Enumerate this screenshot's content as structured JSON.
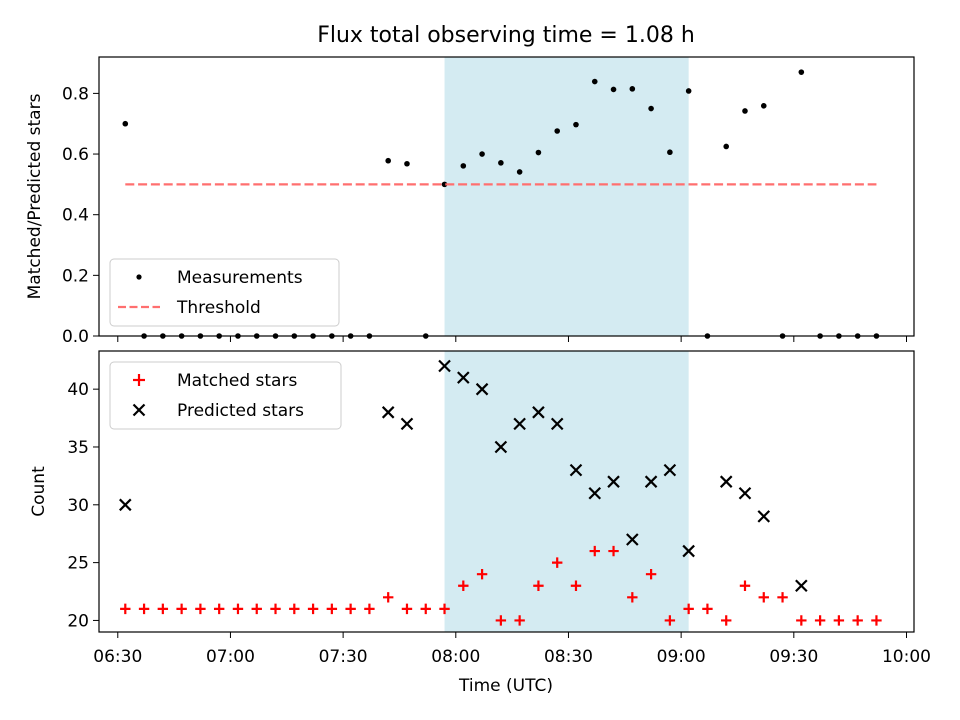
{
  "chart_data": [
    {
      "type": "scatter",
      "title": "Flux total observing time = 1.08 h",
      "ylabel": "Matched/Predicted stars",
      "ylim": [
        0,
        0.92
      ],
      "yticks": [
        0.0,
        0.2,
        0.4,
        0.6,
        0.8
      ],
      "ytick_labels": [
        "0.0",
        "0.2",
        "0.4",
        "0.6",
        "0.8"
      ],
      "xlim": [
        "06:25",
        "10:02"
      ],
      "shaded_span": [
        "07:57",
        "09:02"
      ],
      "shaded_color": "#add8e6",
      "legend_position": "lower left",
      "series": [
        {
          "name": "Measurements",
          "marker": "dot",
          "color": "#000000",
          "points": [
            [
              "06:32",
              0.7
            ],
            [
              "06:37",
              0.0
            ],
            [
              "06:42",
              0.0
            ],
            [
              "06:47",
              0.0
            ],
            [
              "06:52",
              0.0
            ],
            [
              "06:57",
              0.0
            ],
            [
              "07:02",
              0.0
            ],
            [
              "07:07",
              0.0
            ],
            [
              "07:12",
              0.0
            ],
            [
              "07:17",
              0.0
            ],
            [
              "07:22",
              0.0
            ],
            [
              "07:27",
              0.0
            ],
            [
              "07:32",
              0.0
            ],
            [
              "07:37",
              0.0
            ],
            [
              "07:42",
              0.578
            ],
            [
              "07:47",
              0.568
            ],
            [
              "07:52",
              0.0
            ],
            [
              "07:57",
              0.5
            ],
            [
              "08:02",
              0.561
            ],
            [
              "08:07",
              0.6
            ],
            [
              "08:12",
              0.571
            ],
            [
              "08:17",
              0.541
            ],
            [
              "08:22",
              0.605
            ],
            [
              "08:27",
              0.676
            ],
            [
              "08:32",
              0.697
            ],
            [
              "08:37",
              0.839
            ],
            [
              "08:42",
              0.813
            ],
            [
              "08:47",
              0.815
            ],
            [
              "08:52",
              0.75
            ],
            [
              "08:57",
              0.606
            ],
            [
              "09:02",
              0.808
            ],
            [
              "09:07",
              0.0
            ],
            [
              "09:12",
              0.625
            ],
            [
              "09:17",
              0.742
            ],
            [
              "09:22",
              0.759
            ],
            [
              "09:27",
              0.0
            ],
            [
              "09:32",
              0.87
            ],
            [
              "09:37",
              0.0
            ],
            [
              "09:42",
              0.0
            ],
            [
              "09:47",
              0.0
            ],
            [
              "09:52",
              0.0
            ]
          ]
        },
        {
          "name": "Threshold",
          "style": "dashed",
          "color": "#ff6f6f",
          "points": [
            [
              "06:32",
              0.5
            ],
            [
              "09:52",
              0.5
            ]
          ]
        }
      ]
    },
    {
      "type": "scatter",
      "xlabel": "Time (UTC)",
      "ylabel": "Count",
      "ylim": [
        19,
        43.3
      ],
      "yticks": [
        20,
        25,
        30,
        35,
        40
      ],
      "ytick_labels": [
        "20",
        "25",
        "30",
        "35",
        "40"
      ],
      "xlim": [
        "06:25",
        "10:02"
      ],
      "xticks": [
        "06:30",
        "07:00",
        "07:30",
        "08:00",
        "08:30",
        "09:00",
        "09:30",
        "10:00"
      ],
      "xtick_labels": [
        "06:30",
        "07:00",
        "07:30",
        "08:00",
        "08:30",
        "09:00",
        "09:30",
        "10:00"
      ],
      "shaded_span": [
        "07:57",
        "09:02"
      ],
      "shaded_color": "#add8e6",
      "legend_position": "upper left",
      "series": [
        {
          "name": "Matched stars",
          "marker": "plus",
          "color": "#ff0000",
          "points": [
            [
              "06:32",
              21
            ],
            [
              "06:37",
              21
            ],
            [
              "06:42",
              21
            ],
            [
              "06:47",
              21
            ],
            [
              "06:52",
              21
            ],
            [
              "06:57",
              21
            ],
            [
              "07:02",
              21
            ],
            [
              "07:07",
              21
            ],
            [
              "07:12",
              21
            ],
            [
              "07:17",
              21
            ],
            [
              "07:22",
              21
            ],
            [
              "07:27",
              21
            ],
            [
              "07:32",
              21
            ],
            [
              "07:37",
              21
            ],
            [
              "07:42",
              22
            ],
            [
              "07:47",
              21
            ],
            [
              "07:52",
              21
            ],
            [
              "07:57",
              21
            ],
            [
              "08:02",
              23
            ],
            [
              "08:07",
              24
            ],
            [
              "08:12",
              20
            ],
            [
              "08:17",
              20
            ],
            [
              "08:22",
              23
            ],
            [
              "08:27",
              25
            ],
            [
              "08:32",
              23
            ],
            [
              "08:37",
              26
            ],
            [
              "08:42",
              26
            ],
            [
              "08:47",
              22
            ],
            [
              "08:52",
              24
            ],
            [
              "08:57",
              20
            ],
            [
              "09:02",
              21
            ],
            [
              "09:07",
              21
            ],
            [
              "09:12",
              20
            ],
            [
              "09:17",
              23
            ],
            [
              "09:22",
              22
            ],
            [
              "09:27",
              22
            ],
            [
              "09:32",
              20
            ],
            [
              "09:37",
              20
            ],
            [
              "09:42",
              20
            ],
            [
              "09:47",
              20
            ],
            [
              "09:52",
              20
            ]
          ]
        },
        {
          "name": "Predicted stars",
          "marker": "x",
          "color": "#000000",
          "points": [
            [
              "06:32",
              30
            ],
            [
              "07:42",
              38
            ],
            [
              "07:47",
              37
            ],
            [
              "07:57",
              42
            ],
            [
              "08:02",
              41
            ],
            [
              "08:07",
              40
            ],
            [
              "08:12",
              35
            ],
            [
              "08:17",
              37
            ],
            [
              "08:22",
              38
            ],
            [
              "08:27",
              37
            ],
            [
              "08:32",
              33
            ],
            [
              "08:37",
              31
            ],
            [
              "08:42",
              32
            ],
            [
              "08:47",
              27
            ],
            [
              "08:52",
              32
            ],
            [
              "08:57",
              33
            ],
            [
              "09:02",
              26
            ],
            [
              "09:12",
              32
            ],
            [
              "09:17",
              31
            ],
            [
              "09:22",
              29
            ],
            [
              "09:32",
              23
            ]
          ]
        }
      ]
    }
  ]
}
